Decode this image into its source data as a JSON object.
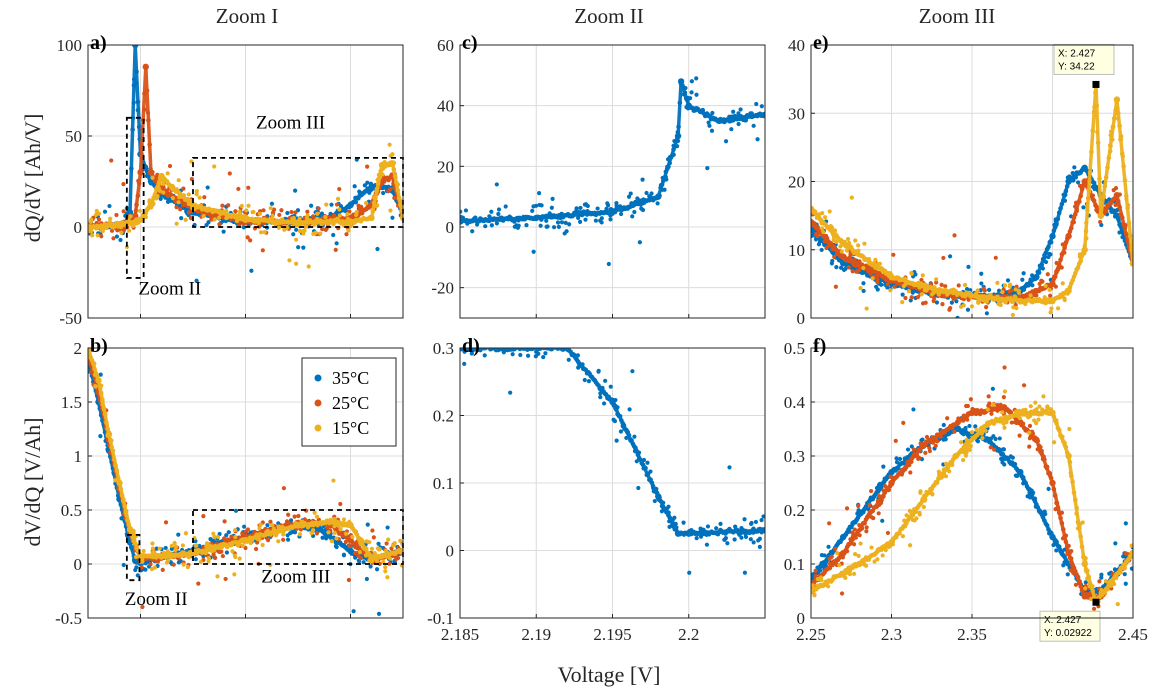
{
  "colors": {
    "35C": "#0072BD",
    "25C": "#D95319",
    "15C": "#EDB120"
  },
  "titles": [
    "Zoom I",
    "Zoom II",
    "Zoom III"
  ],
  "xlabel": "Voltage [V]",
  "ylabels": [
    "dQ/dV [Ah/V]",
    "dV/dQ [V/Ah]"
  ],
  "legend": [
    {
      "name": "35°C",
      "color": "#0072BD"
    },
    {
      "name": "25°C",
      "color": "#D95319"
    },
    {
      "name": "15°C",
      "color": "#EDB120"
    }
  ],
  "chart_data": [
    {
      "id": "a",
      "panel_label": "a)",
      "type": "scatter",
      "xlim": [
        2.15,
        2.45
      ],
      "ylim": [
        -50,
        100
      ],
      "xticks": [
        2.2,
        2.3,
        2.4
      ],
      "xtick_labels": [
        "",
        "",
        ""
      ],
      "yticks": [
        -50,
        0,
        50,
        100
      ],
      "ytick_labels": [
        "-50",
        "0",
        "50",
        "100"
      ],
      "series": [
        {
          "name": "35°C",
          "x": [
            2.15,
            2.17,
            2.185,
            2.19,
            2.195,
            2.2,
            2.21,
            2.22,
            2.25,
            2.3,
            2.35,
            2.38,
            2.4,
            2.41,
            2.42,
            2.43,
            2.44,
            2.45
          ],
          "y": [
            0,
            0.5,
            2,
            8,
            100,
            40,
            25,
            18,
            8,
            3,
            3,
            5,
            12,
            18,
            22,
            22,
            20,
            8
          ]
        },
        {
          "name": "25°C",
          "x": [
            2.15,
            2.18,
            2.19,
            2.195,
            2.2,
            2.205,
            2.21,
            2.22,
            2.25,
            2.3,
            2.35,
            2.4,
            2.42,
            2.43,
            2.44,
            2.45
          ],
          "y": [
            0,
            1,
            3,
            6,
            30,
            88,
            30,
            20,
            10,
            3,
            2.5,
            5,
            12,
            25,
            28,
            6
          ]
        },
        {
          "name": "15°C",
          "x": [
            2.15,
            2.18,
            2.2,
            2.21,
            2.22,
            2.23,
            2.25,
            2.3,
            2.35,
            2.4,
            2.42,
            2.43,
            2.44,
            2.45
          ],
          "y": [
            0,
            1,
            4,
            12,
            28,
            22,
            12,
            4,
            2.5,
            3,
            5,
            34,
            35,
            5
          ]
        }
      ],
      "annotations": [
        {
          "text": "Zoom II",
          "x": 2.198,
          "y": -37
        },
        {
          "text": "Zoom III",
          "x": 2.31,
          "y": 54
        }
      ]
    },
    {
      "id": "b",
      "panel_label": "b)",
      "type": "scatter",
      "xlim": [
        2.15,
        2.45
      ],
      "ylim": [
        -0.5,
        2
      ],
      "xticks": [
        2.2,
        2.3,
        2.4
      ],
      "xtick_labels": [
        "",
        "",
        ""
      ],
      "yticks": [
        -0.5,
        0,
        0.5,
        1,
        1.5,
        2
      ],
      "ytick_labels": [
        "-0.5",
        "0",
        "0.5",
        "1",
        "1.5",
        "2"
      ],
      "series": [
        {
          "name": "35°C",
          "x": [
            2.15,
            2.16,
            2.17,
            2.18,
            2.19,
            2.195,
            2.2,
            2.22,
            2.25,
            2.3,
            2.33,
            2.35,
            2.37,
            2.4,
            2.42,
            2.45
          ],
          "y": [
            1.9,
            1.5,
            1.05,
            0.6,
            0.2,
            0.03,
            0.02,
            0.06,
            0.12,
            0.25,
            0.33,
            0.35,
            0.32,
            0.12,
            0.04,
            0.12
          ]
        },
        {
          "name": "25°C",
          "x": [
            2.15,
            2.16,
            2.17,
            2.18,
            2.19,
            2.2,
            2.22,
            2.25,
            2.3,
            2.35,
            2.38,
            2.4,
            2.42,
            2.45
          ],
          "y": [
            1.95,
            1.6,
            1.15,
            0.7,
            0.3,
            0.05,
            0.06,
            0.1,
            0.25,
            0.38,
            0.37,
            0.22,
            0.04,
            0.12
          ]
        },
        {
          "name": "15°C",
          "x": [
            2.15,
            2.16,
            2.17,
            2.18,
            2.19,
            2.2,
            2.22,
            2.25,
            2.3,
            2.35,
            2.38,
            2.4,
            2.42,
            2.45
          ],
          "y": [
            2.0,
            1.7,
            1.2,
            0.75,
            0.32,
            0.07,
            0.07,
            0.1,
            0.22,
            0.36,
            0.39,
            0.36,
            0.05,
            0.12
          ]
        }
      ],
      "annotations": [
        {
          "text": "Zoom II",
          "x": 2.185,
          "y": -0.38
        },
        {
          "text": "Zoom III",
          "x": 2.315,
          "y": -0.17
        }
      ]
    },
    {
      "id": "c",
      "panel_label": "c)",
      "type": "scatter",
      "xlim": [
        2.185,
        2.205
      ],
      "ylim": [
        -30,
        60
      ],
      "xticks": [
        2.185,
        2.19,
        2.195,
        2.2
      ],
      "xtick_labels": [
        "",
        "",
        "",
        ""
      ],
      "yticks": [
        -20,
        0,
        20,
        40,
        60
      ],
      "ytick_labels": [
        "-20",
        "0",
        "20",
        "40",
        "60"
      ],
      "series": [
        {
          "name": "35°C",
          "x": [
            2.185,
            2.19,
            2.195,
            2.198,
            2.1993,
            2.1995,
            2.2,
            2.202,
            2.205
          ],
          "y": [
            2,
            3,
            5,
            10,
            30,
            48,
            40,
            35,
            37
          ]
        }
      ]
    },
    {
      "id": "d",
      "panel_label": "d)",
      "type": "scatter",
      "xlim": [
        2.185,
        2.205
      ],
      "ylim": [
        -0.1,
        0.3
      ],
      "xticks": [
        2.185,
        2.19,
        2.195,
        2.2
      ],
      "xtick_labels": [
        "2.185",
        "2.19",
        "2.195",
        "2.2"
      ],
      "yticks": [
        -0.1,
        0,
        0.1,
        0.2,
        0.3
      ],
      "ytick_labels": [
        "-0.1",
        "0",
        "0.1",
        "0.2",
        "0.3"
      ],
      "series": [
        {
          "name": "35°C",
          "x": [
            2.192,
            2.195,
            2.198,
            2.1993,
            2.2,
            2.205
          ],
          "y": [
            0.3,
            0.22,
            0.08,
            0.025,
            0.025,
            0.03
          ]
        }
      ]
    },
    {
      "id": "e",
      "panel_label": "e)",
      "type": "scatter",
      "xlim": [
        2.25,
        2.45
      ],
      "ylim": [
        0,
        40
      ],
      "xticks": [
        2.25,
        2.3,
        2.35,
        2.4,
        2.45
      ],
      "xtick_labels": [
        "",
        "",
        "",
        "",
        ""
      ],
      "yticks": [
        0,
        10,
        20,
        30,
        40
      ],
      "ytick_labels": [
        "0",
        "10",
        "20",
        "30",
        "40"
      ],
      "series": [
        {
          "name": "35°C",
          "x": [
            2.25,
            2.27,
            2.3,
            2.33,
            2.36,
            2.38,
            2.39,
            2.4,
            2.41,
            2.42,
            2.43,
            2.44,
            2.45
          ],
          "y": [
            13,
            8,
            5,
            3.5,
            3,
            4,
            6,
            12,
            20,
            22,
            18,
            15,
            8
          ]
        },
        {
          "name": "25°C",
          "x": [
            2.25,
            2.27,
            2.3,
            2.33,
            2.36,
            2.38,
            2.4,
            2.41,
            2.42,
            2.43,
            2.44,
            2.45
          ],
          "y": [
            14,
            9,
            5.5,
            3.5,
            3,
            3,
            5,
            12,
            20,
            15,
            18,
            8
          ]
        },
        {
          "name": "15°C",
          "x": [
            2.25,
            2.27,
            2.3,
            2.33,
            2.36,
            2.38,
            2.4,
            2.41,
            2.42,
            2.427,
            2.43,
            2.44,
            2.45
          ],
          "y": [
            16,
            11,
            6,
            4,
            3,
            2.5,
            2.5,
            4,
            10,
            34.22,
            15,
            32,
            8
          ]
        }
      ],
      "datatip": {
        "x": 2.427,
        "y": 34.22,
        "label_x": "X: 2.427",
        "label_y": "Y: 34.22"
      }
    },
    {
      "id": "f",
      "panel_label": "f)",
      "type": "scatter",
      "xlim": [
        2.25,
        2.45
      ],
      "ylim": [
        0,
        0.5
      ],
      "xticks": [
        2.25,
        2.3,
        2.35,
        2.4,
        2.45
      ],
      "xtick_labels": [
        "2.25",
        "2.3",
        "2.35",
        "2.4",
        "2.45"
      ],
      "yticks": [
        0,
        0.1,
        0.2,
        0.3,
        0.4,
        0.5
      ],
      "ytick_labels": [
        "0",
        "0.1",
        "0.2",
        "0.3",
        "0.4",
        "0.5"
      ],
      "series": [
        {
          "name": "35°C",
          "x": [
            2.25,
            2.27,
            2.3,
            2.32,
            2.34,
            2.36,
            2.38,
            2.4,
            2.42,
            2.43,
            2.45
          ],
          "y": [
            0.07,
            0.15,
            0.27,
            0.32,
            0.35,
            0.33,
            0.27,
            0.15,
            0.05,
            0.05,
            0.12
          ]
        },
        {
          "name": "25°C",
          "x": [
            2.25,
            2.27,
            2.3,
            2.32,
            2.35,
            2.37,
            2.39,
            2.4,
            2.41,
            2.42,
            2.43,
            2.45
          ],
          "y": [
            0.06,
            0.12,
            0.25,
            0.32,
            0.38,
            0.39,
            0.33,
            0.25,
            0.12,
            0.04,
            0.04,
            0.12
          ]
        },
        {
          "name": "15°C",
          "x": [
            2.25,
            2.28,
            2.3,
            2.32,
            2.34,
            2.36,
            2.38,
            2.4,
            2.41,
            2.42,
            2.427,
            2.45
          ],
          "y": [
            0.05,
            0.1,
            0.14,
            0.22,
            0.3,
            0.36,
            0.38,
            0.38,
            0.3,
            0.1,
            0.02922,
            0.12
          ]
        }
      ],
      "datatip": {
        "x": 2.427,
        "y": 0.02922,
        "label_x": "X: 2.427",
        "label_y": "Y: 0.02922"
      }
    }
  ]
}
